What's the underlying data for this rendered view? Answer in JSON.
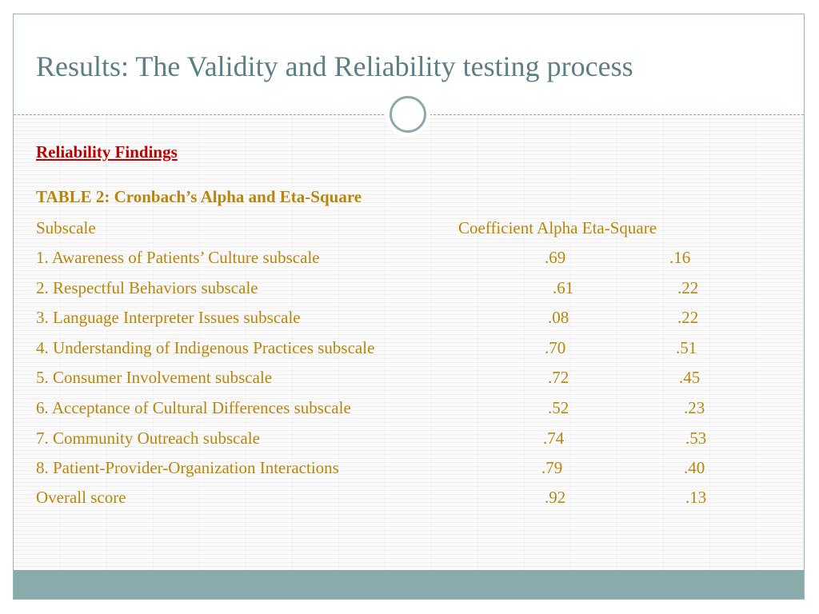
{
  "slide": {
    "title": "Results: The Validity and Reliability testing process",
    "section_heading": "Reliability Findings",
    "table_caption": "TABLE 2: Cronbach’s Alpha and Eta-Square",
    "header": {
      "subscale": "Subscale",
      "alpha_eta": "Coefficient Alpha Eta-Square"
    },
    "rows": [
      {
        "label": "1. Awareness of Patients’ Culture subscale",
        "alpha": ".69",
        "eta": ".16"
      },
      {
        "label": "2. Respectful Behaviors subscale",
        "alpha": ".61",
        "eta": ".22"
      },
      {
        "label": "3. Language Interpreter Issues subscale",
        "alpha": ".08",
        "eta": ".22"
      },
      {
        "label": "4. Understanding of Indigenous Practices subscale",
        "alpha": ".70",
        "eta": ".51"
      },
      {
        "label": "5. Consumer Involvement subscale",
        "alpha": ".72",
        "eta": ".45"
      },
      {
        "label": "6. Acceptance of Cultural Differences subscale",
        "alpha": ".52",
        "eta": ".23"
      },
      {
        "label": "7. Community Outreach subscale",
        "alpha": ".74",
        "eta": ".53"
      },
      {
        "label": "8. Patient-Provider-Organization Interactions",
        "alpha": ".79",
        "eta": ".40"
      },
      {
        "label": "Overall score",
        "alpha": ".92",
        "eta": ".13"
      }
    ]
  },
  "colors": {
    "title": "#5b7f82",
    "heading": "#c00000",
    "body_text": "#b8860b",
    "accent": "#8aabab"
  }
}
